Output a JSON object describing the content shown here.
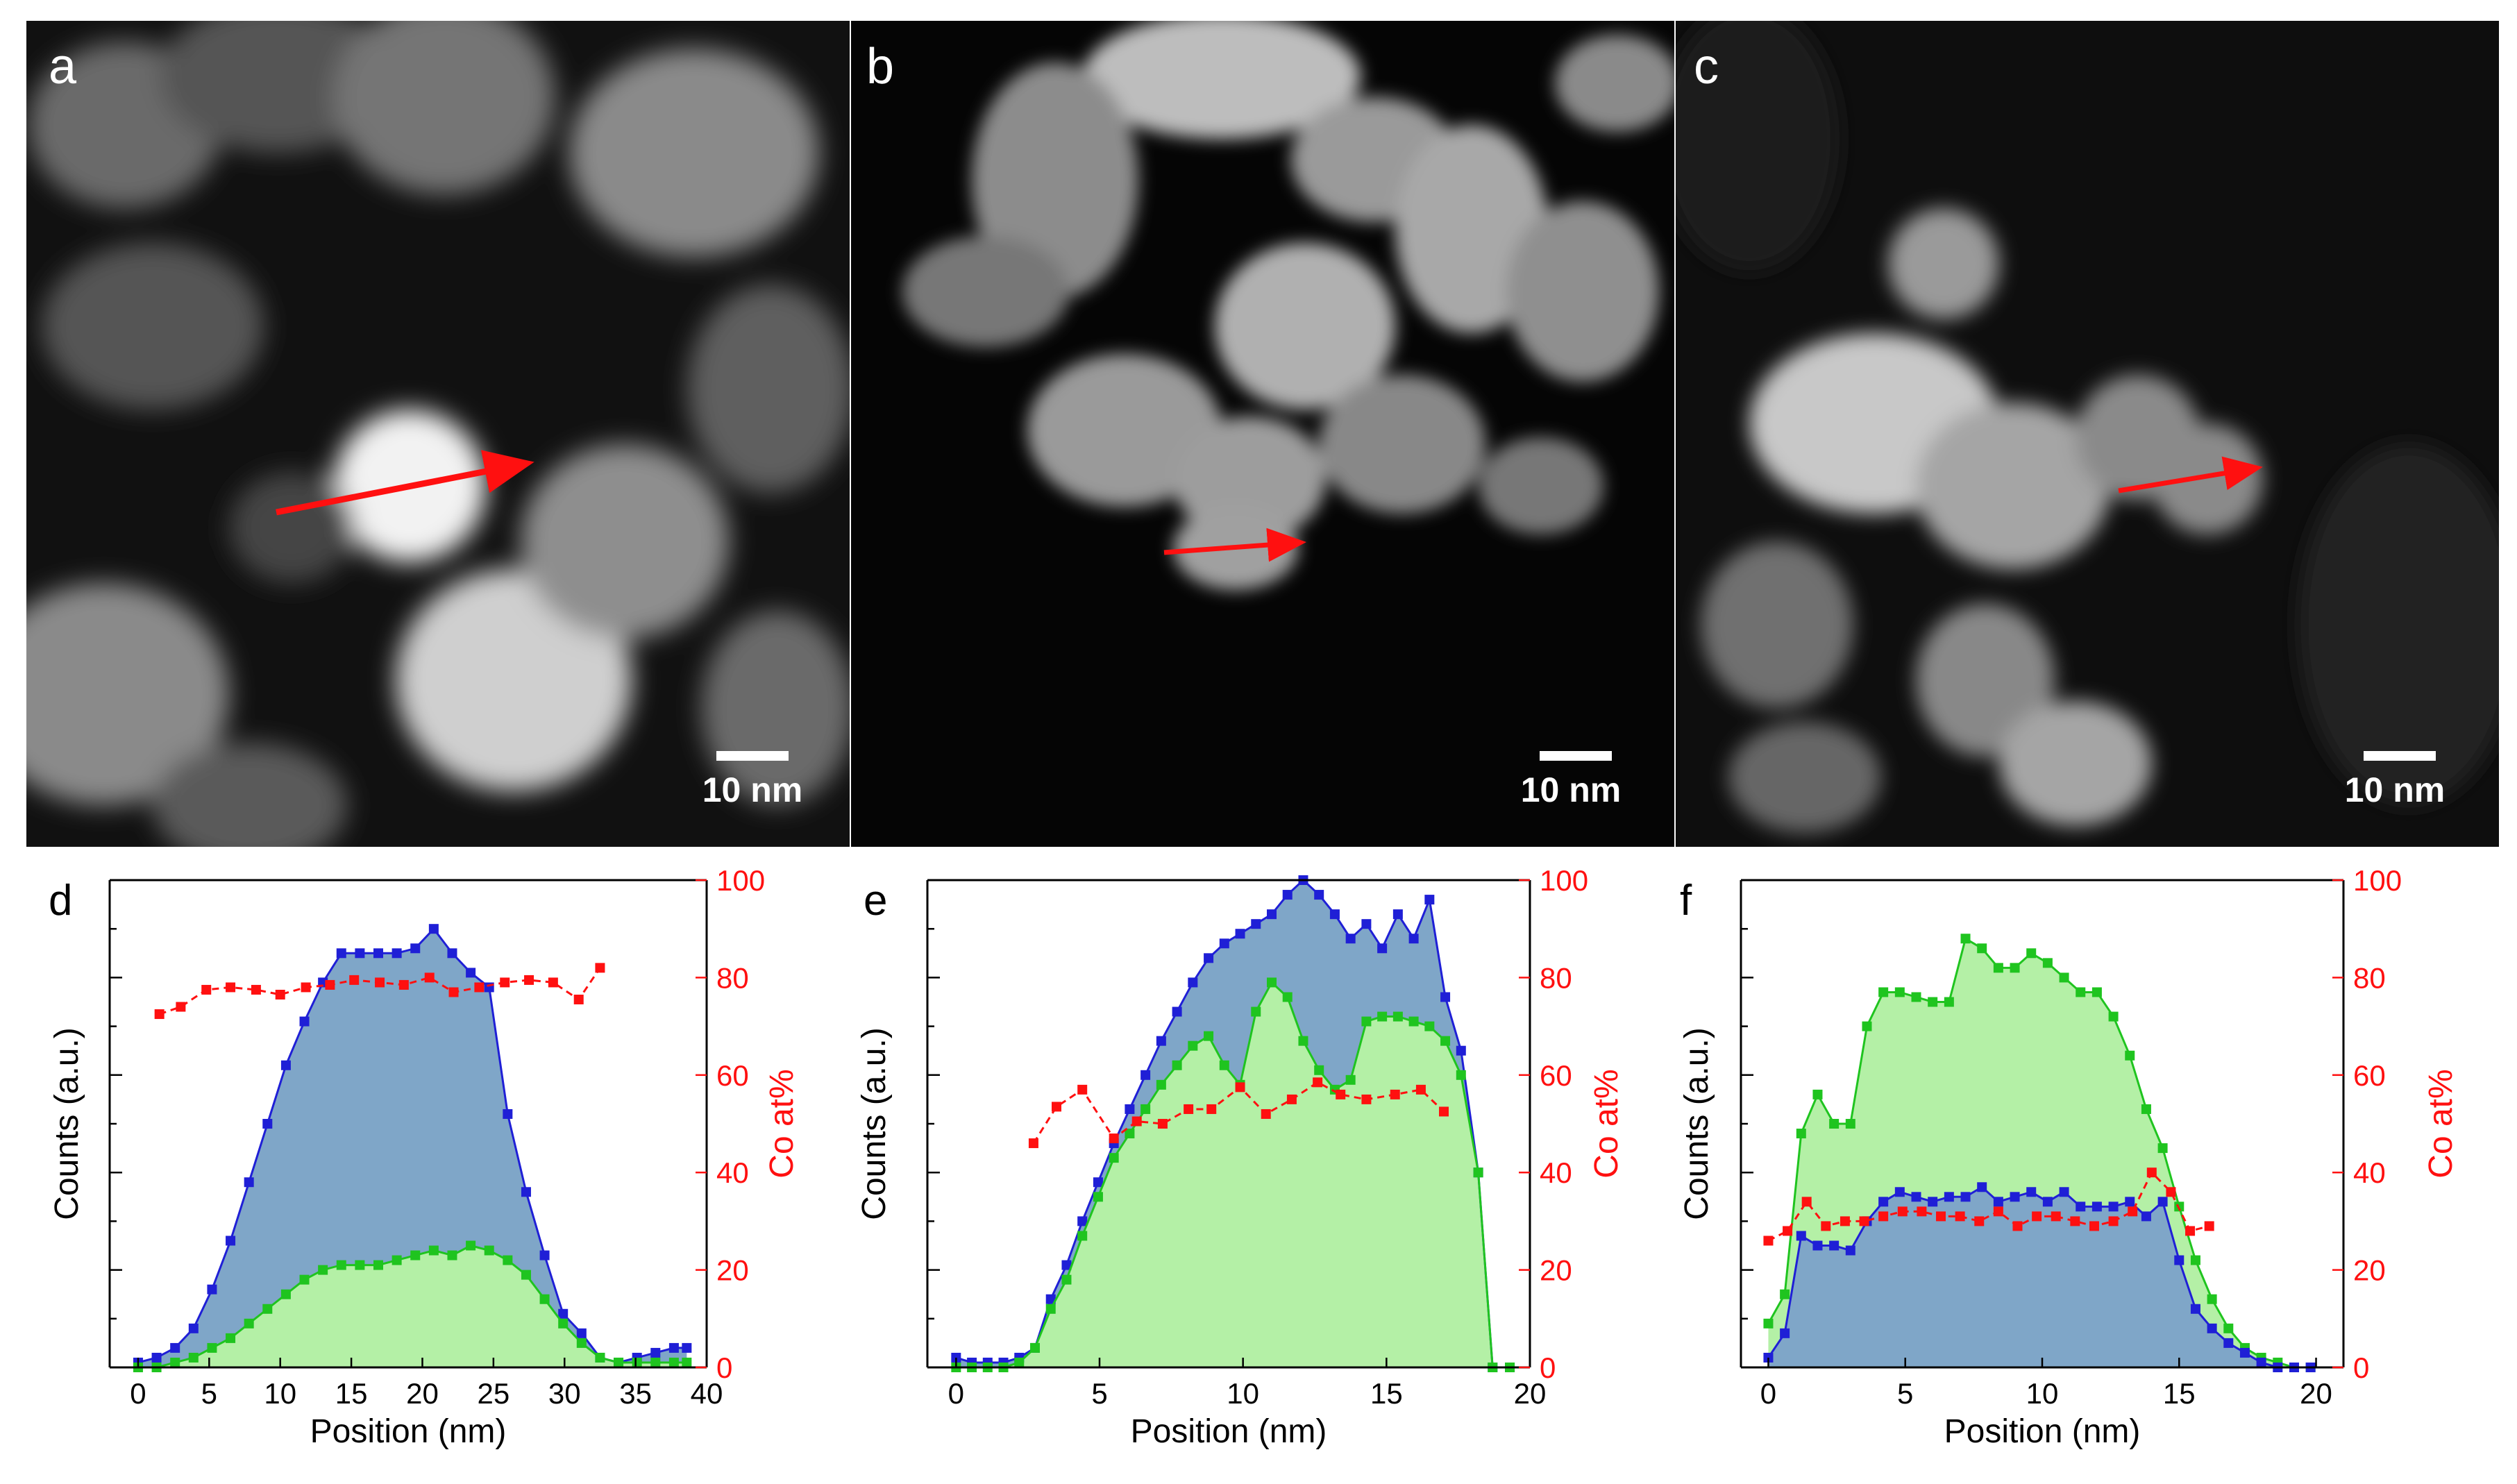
{
  "figure": {
    "micrographs": [
      {
        "panel": "a",
        "scale_bar": "10 nm"
      },
      {
        "panel": "b",
        "scale_bar": "10 nm"
      },
      {
        "panel": "c",
        "scale_bar": "10 nm"
      }
    ]
  },
  "colors": {
    "blue_line": "#1f1fd6",
    "blue_fill": "#7fa6c8",
    "green_line": "#1fc41f",
    "green_fill": "#b4f0a6",
    "red": "#ff1010"
  },
  "chart_data": [
    {
      "panel": "d",
      "type": "area",
      "xlabel": "Position (nm)",
      "ylabel": "Counts (a.u.)",
      "y2label": "Co at%",
      "xlim": [
        -2,
        40
      ],
      "xticks": [
        0,
        5,
        10,
        15,
        20,
        25,
        30,
        35,
        40
      ],
      "ylim": [
        0,
        100
      ],
      "y2lim": [
        0,
        100
      ],
      "y2ticks": [
        0,
        20,
        40,
        60,
        80,
        100
      ],
      "blue_on_top": false,
      "series": [
        {
          "name": "blue",
          "x": [
            0,
            1.3,
            2.6,
            3.9,
            5.2,
            6.5,
            7.8,
            9.1,
            10.4,
            11.7,
            13,
            14.3,
            15.6,
            16.9,
            18.2,
            19.5,
            20.8,
            22.1,
            23.4,
            24.7,
            26,
            27.3,
            28.6,
            29.9,
            31.2,
            32.5,
            33.8,
            35.1,
            36.4,
            37.7,
            38.6
          ],
          "values": [
            1,
            2,
            4,
            8,
            16,
            26,
            38,
            50,
            62,
            71,
            79,
            85,
            85,
            85,
            85,
            86,
            90,
            85,
            81,
            78,
            52,
            36,
            23,
            11,
            7,
            2,
            1,
            2,
            3,
            4,
            4
          ]
        },
        {
          "name": "green",
          "x": [
            0,
            1.3,
            2.6,
            3.9,
            5.2,
            6.5,
            7.8,
            9.1,
            10.4,
            11.7,
            13,
            14.3,
            15.6,
            16.9,
            18.2,
            19.5,
            20.8,
            22.1,
            23.4,
            24.7,
            26,
            27.3,
            28.6,
            29.9,
            31.2,
            32.5,
            33.8,
            35.1,
            36.4,
            37.7,
            38.6
          ],
          "values": [
            0,
            0,
            1,
            2,
            4,
            6,
            9,
            12,
            15,
            18,
            20,
            21,
            21,
            21,
            22,
            23,
            24,
            23,
            25,
            24,
            22,
            19,
            14,
            9,
            5,
            2,
            1,
            1,
            1,
            1,
            1
          ]
        },
        {
          "name": "Co at%",
          "axis": "right",
          "x": [
            1.5,
            3,
            4.8,
            6.5,
            8.3,
            10,
            11.8,
            13.5,
            15.2,
            17,
            18.7,
            20.5,
            22.2,
            24,
            25.8,
            27.5,
            29.2,
            31,
            32.5
          ],
          "values": [
            72.5,
            74,
            77.5,
            78,
            77.5,
            76.5,
            78,
            78.5,
            79.5,
            79,
            78.5,
            80,
            77,
            78,
            79,
            79.5,
            79,
            75.5,
            82
          ]
        }
      ]
    },
    {
      "panel": "e",
      "type": "area",
      "xlabel": "Position (nm)",
      "ylabel": "Counts (a.u.)",
      "y2label": "Co at%",
      "xlim": [
        -1,
        20
      ],
      "xticks": [
        0,
        5,
        10,
        15,
        20
      ],
      "ylim": [
        0,
        100
      ],
      "y2lim": [
        0,
        100
      ],
      "y2ticks": [
        0,
        20,
        40,
        60,
        80,
        100
      ],
      "blue_on_top": false,
      "series": [
        {
          "name": "blue",
          "x": [
            0,
            0.55,
            1.1,
            1.65,
            2.2,
            2.75,
            3.3,
            3.85,
            4.4,
            4.95,
            5.5,
            6.05,
            6.6,
            7.15,
            7.7,
            8.25,
            8.8,
            9.35,
            9.9,
            10.45,
            11,
            11.55,
            12.1,
            12.65,
            13.2,
            13.75,
            14.3,
            14.85,
            15.4,
            15.95,
            16.5,
            17.05,
            17.6,
            18.2,
            18.7,
            19.3
          ],
          "values": [
            2,
            1,
            1,
            1,
            2,
            4,
            14,
            21,
            30,
            38,
            46,
            53,
            60,
            67,
            73,
            79,
            84,
            87,
            89,
            91,
            93,
            97,
            100,
            97,
            93,
            88,
            91,
            86,
            93,
            88,
            96,
            76,
            65,
            40,
            0,
            0
          ]
        },
        {
          "name": "green",
          "x": [
            0,
            0.55,
            1.1,
            1.65,
            2.2,
            2.75,
            3.3,
            3.85,
            4.4,
            4.95,
            5.5,
            6.05,
            6.6,
            7.15,
            7.7,
            8.25,
            8.8,
            9.35,
            9.9,
            10.45,
            11,
            11.55,
            12.1,
            12.65,
            13.2,
            13.75,
            14.3,
            14.85,
            15.4,
            15.95,
            16.5,
            17.05,
            17.6,
            18.2,
            18.7,
            19.3
          ],
          "values": [
            0,
            0,
            0,
            0,
            1,
            4,
            12,
            18,
            27,
            35,
            43,
            48,
            53,
            58,
            62,
            66,
            68,
            62,
            58,
            73,
            79,
            76,
            67,
            61,
            57,
            59,
            71,
            72,
            72,
            71,
            70,
            67,
            60,
            40,
            0,
            0
          ]
        },
        {
          "name": "Co at%",
          "axis": "right",
          "x": [
            2.7,
            3.5,
            4.4,
            5.5,
            6.3,
            7.2,
            8.1,
            8.9,
            9.9,
            10.8,
            11.7,
            12.6,
            13.4,
            14.3,
            15.3,
            16.2,
            17
          ],
          "values": [
            46,
            53.5,
            57,
            47,
            50.5,
            50,
            53,
            53,
            57.5,
            52,
            55,
            58.5,
            56,
            55,
            56,
            57,
            52.5
          ]
        }
      ]
    },
    {
      "panel": "f",
      "type": "area",
      "xlabel": "Position (nm)",
      "ylabel": "Counts (a.u.)",
      "y2label": "Co at%",
      "xlim": [
        -1,
        21
      ],
      "xticks": [
        0,
        5,
        10,
        15,
        20
      ],
      "ylim": [
        0,
        100
      ],
      "y2lim": [
        0,
        100
      ],
      "y2ticks": [
        0,
        20,
        40,
        60,
        80,
        100
      ],
      "blue_on_top": true,
      "series": [
        {
          "name": "blue",
          "x": [
            0,
            0.6,
            1.2,
            1.8,
            2.4,
            3,
            3.6,
            4.2,
            4.8,
            5.4,
            6,
            6.6,
            7.2,
            7.8,
            8.4,
            9,
            9.6,
            10.2,
            10.8,
            11.4,
            12,
            12.6,
            13.2,
            13.8,
            14.4,
            15,
            15.6,
            16.2,
            16.8,
            17.4,
            18,
            18.6,
            19.2,
            19.8
          ],
          "values": [
            2,
            7,
            27,
            25,
            25,
            24,
            30,
            34,
            36,
            35,
            34,
            35,
            35,
            37,
            34,
            35,
            36,
            34,
            36,
            33,
            33,
            33,
            34,
            31,
            34,
            22,
            12,
            8,
            5,
            3,
            1,
            0,
            0,
            0
          ]
        },
        {
          "name": "green",
          "x": [
            0,
            0.6,
            1.2,
            1.8,
            2.4,
            3,
            3.6,
            4.2,
            4.8,
            5.4,
            6,
            6.6,
            7.2,
            7.8,
            8.4,
            9,
            9.6,
            10.2,
            10.8,
            11.4,
            12,
            12.6,
            13.2,
            13.8,
            14.4,
            15,
            15.6,
            16.2,
            16.8,
            17.4,
            18,
            18.6,
            19.2,
            19.8
          ],
          "values": [
            9,
            15,
            48,
            56,
            50,
            50,
            70,
            77,
            77,
            76,
            75,
            75,
            88,
            86,
            82,
            82,
            85,
            83,
            80,
            77,
            77,
            72,
            64,
            53,
            45,
            33,
            22,
            14,
            8,
            4,
            2,
            1,
            0,
            0
          ]
        },
        {
          "name": "Co at%",
          "axis": "right",
          "x": [
            0,
            0.7,
            1.4,
            2.1,
            2.8,
            3.5,
            4.2,
            4.9,
            5.6,
            6.3,
            7,
            7.7,
            8.4,
            9.1,
            9.8,
            10.5,
            11.2,
            11.9,
            12.6,
            13.3,
            14,
            14.7,
            15.4,
            16.1
          ],
          "values": [
            26,
            28,
            34,
            29,
            30,
            30,
            31,
            32,
            32,
            31,
            31,
            30,
            32,
            29,
            31,
            31,
            30,
            29,
            30,
            32,
            40,
            36,
            28,
            29
          ]
        }
      ]
    }
  ]
}
